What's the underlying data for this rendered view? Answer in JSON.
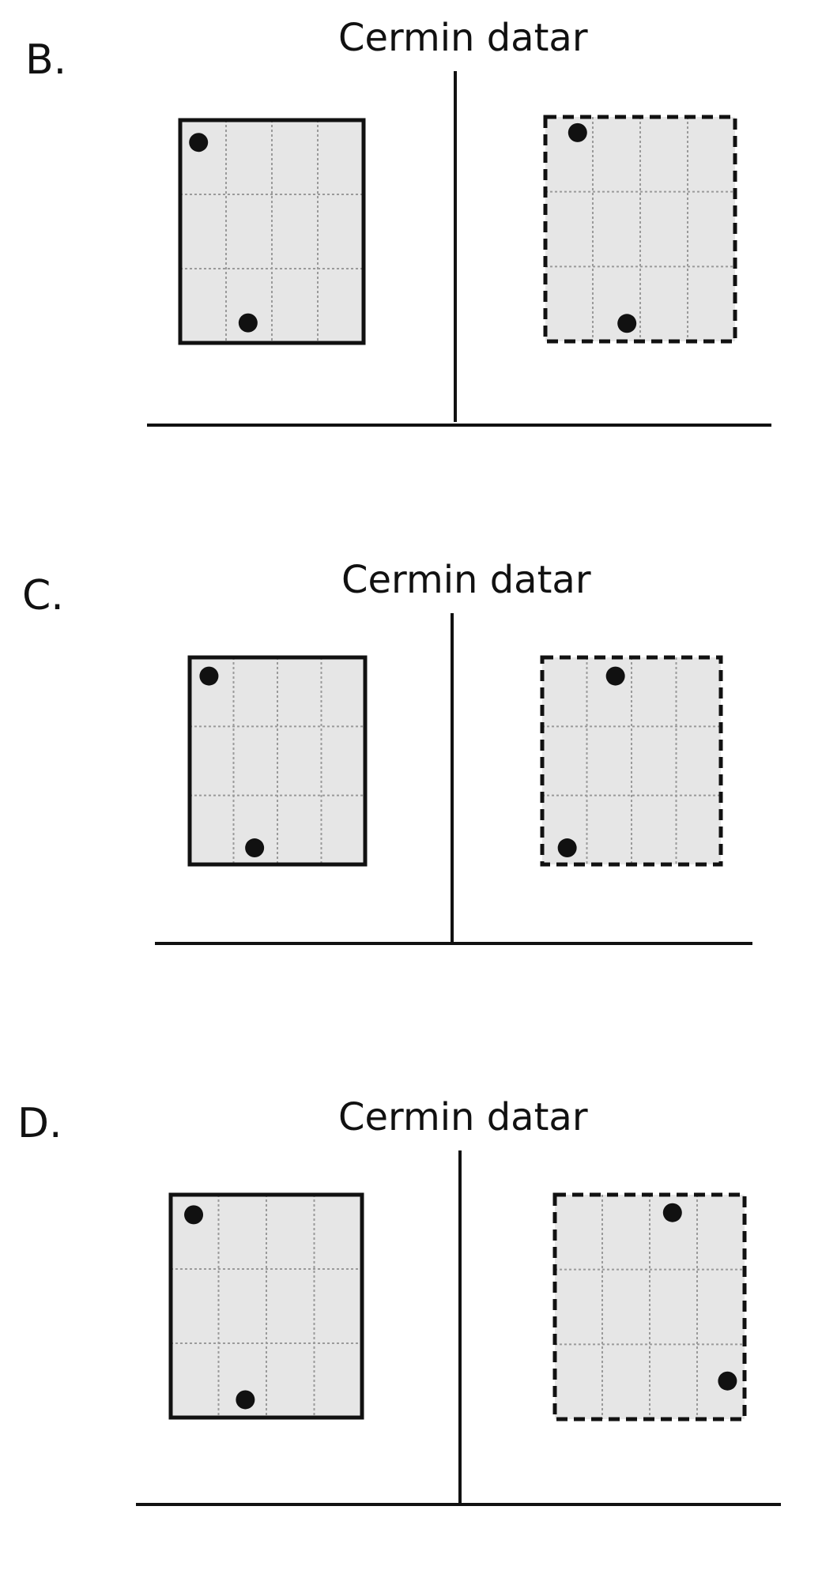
{
  "options": [
    {
      "letter": "B.",
      "title": "Cermin datar",
      "object_dots": [
        [
          0.1,
          0.1
        ],
        [
          0.37,
          0.91
        ]
      ],
      "image_dots": [
        [
          0.17,
          0.07
        ],
        [
          0.43,
          0.92
        ]
      ]
    },
    {
      "letter": "C.",
      "title": "Cermin datar",
      "object_dots": [
        [
          0.11,
          0.09
        ],
        [
          0.37,
          0.92
        ]
      ],
      "image_dots": [
        [
          0.41,
          0.09
        ],
        [
          0.14,
          0.92
        ]
      ]
    },
    {
      "letter": "D.",
      "title": "Cermin datar",
      "object_dots": [
        [
          0.12,
          0.09
        ],
        [
          0.39,
          0.92
        ]
      ],
      "image_dots": [
        [
          0.62,
          0.08
        ],
        [
          0.91,
          0.83
        ]
      ]
    }
  ]
}
